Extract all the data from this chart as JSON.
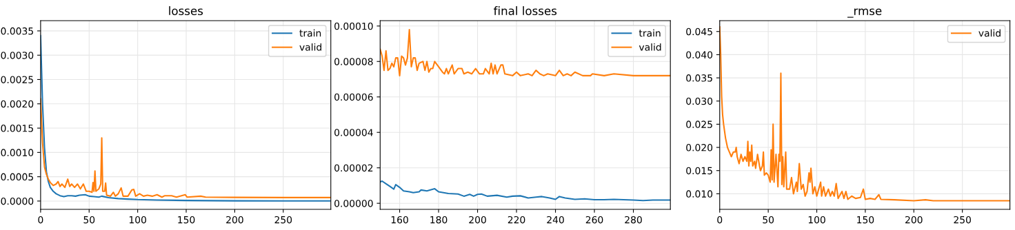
{
  "chart_data": [
    {
      "type": "line",
      "title": "losses",
      "xlim": [
        0,
        299
      ],
      "xticks": [
        0,
        50,
        100,
        150,
        200,
        250
      ],
      "ylim": [
        -0.00017,
        0.00371
      ],
      "yticks": [
        {
          "value": 0,
          "label": "0.0000"
        },
        {
          "value": 0.0005,
          "label": "0.0005"
        },
        {
          "value": 0.001,
          "label": "0.0010"
        },
        {
          "value": 0.0015,
          "label": "0.0015"
        },
        {
          "value": 0.002,
          "label": "0.0020"
        },
        {
          "value": 0.0025,
          "label": "0.0025"
        },
        {
          "value": 0.003,
          "label": "0.0030"
        },
        {
          "value": 0.0035,
          "label": "0.0035"
        }
      ],
      "grid": true,
      "legend": "top right",
      "series": [
        {
          "name": "train",
          "color": "#1f77b4",
          "x": [
            0,
            2,
            4,
            6,
            8,
            10,
            13,
            16,
            20,
            24,
            28,
            32,
            36,
            40,
            46,
            50,
            55,
            60,
            63,
            70,
            80,
            90,
            100,
            120,
            150,
            200,
            250,
            299
          ],
          "values": [
            0.0034,
            0.002,
            0.0011,
            0.0006,
            0.0004,
            0.00028,
            0.0002,
            0.00015,
            0.00011,
            9e-05,
            0.00011,
            0.00011,
            0.0001,
            0.00012,
            0.00013,
            0.0001,
            9e-05,
            8e-05,
            0.0001,
            7e-05,
            5e-05,
            4e-05,
            3e-05,
            2e-05,
            1.2e-05,
            5e-06,
            2e-06,
            1.8e-06
          ]
        },
        {
          "name": "valid",
          "color": "#ff7f0e",
          "x": [
            0,
            2,
            4,
            6,
            8,
            10,
            13,
            16,
            18,
            20,
            22,
            25,
            28,
            30,
            32,
            35,
            38,
            41,
            44,
            47,
            50,
            53,
            54,
            55,
            56,
            57,
            60,
            62,
            63,
            64,
            66,
            67,
            68,
            72,
            75,
            77,
            80,
            83,
            85,
            90,
            94,
            96,
            98,
            102,
            106,
            110,
            115,
            120,
            125,
            128,
            135,
            140,
            149,
            151,
            165,
            170,
            200,
            250,
            299
          ],
          "values": [
            0.0021,
            0.0012,
            0.0007,
            0.00055,
            0.00045,
            0.00038,
            0.00032,
            0.00035,
            0.0004,
            0.0003,
            0.00035,
            0.00028,
            0.00045,
            0.0003,
            0.00035,
            0.00028,
            0.00035,
            0.00025,
            0.00035,
            0.0002,
            0.0002,
            0.00018,
            0.00038,
            0.0002,
            0.00062,
            0.0002,
            0.00025,
            0.00035,
            0.0013,
            0.0002,
            0.0002,
            0.00037,
            0.00012,
            0.0001,
            0.00018,
            0.0001,
            0.00015,
            0.00027,
            0.0001,
            0.0001,
            0.00023,
            0.00024,
            0.0001,
            0.00015,
            0.0001,
            0.00012,
            0.0001,
            0.00013,
            8e-05,
            0.00011,
            0.00011,
            8e-05,
            0.00013,
            8e-05,
            0.0001,
            8e-05,
            7.5e-05,
            7.2e-05,
            7.2e-05
          ]
        }
      ]
    },
    {
      "type": "line",
      "title": "final losses",
      "xlim": [
        150,
        299
      ],
      "xticks": [
        160,
        180,
        200,
        220,
        240,
        260,
        280
      ],
      "ylim": [
        -3.4e-06,
        0.000103
      ],
      "yticks": [
        {
          "value": 0,
          "label": "0.00000"
        },
        {
          "value": 2e-05,
          "label": "0.00002"
        },
        {
          "value": 4e-05,
          "label": "0.00004"
        },
        {
          "value": 6e-05,
          "label": "0.00006"
        },
        {
          "value": 8e-05,
          "label": "0.00008"
        },
        {
          "value": 0.0001,
          "label": "0.00010"
        }
      ],
      "grid": true,
      "legend": "top right",
      "series": [
        {
          "name": "train",
          "color": "#1f77b4",
          "x": [
            150,
            151,
            153,
            155,
            157,
            158,
            160,
            162,
            165,
            167,
            170,
            171,
            174,
            178,
            180,
            185,
            190,
            193,
            196,
            198,
            200,
            202,
            205,
            210,
            215,
            218,
            222,
            226,
            230,
            233,
            237,
            240,
            242,
            245,
            250,
            255,
            260,
            265,
            270,
            280,
            285,
            290,
            299
          ],
          "values": [
            1.2e-05,
            1.25e-05,
            1.1e-05,
            9.5e-06,
            8e-06,
            1.05e-05,
            9e-06,
            7e-06,
            6.5e-06,
            6e-06,
            6.5e-06,
            7.5e-06,
            7e-06,
            8.2e-06,
            6.5e-06,
            5.5e-06,
            5.2e-06,
            4e-06,
            5e-06,
            4e-06,
            5e-06,
            5.2e-06,
            4e-06,
            4.5e-06,
            3.5e-06,
            4e-06,
            4.2e-06,
            3e-06,
            3.5e-06,
            3.8e-06,
            3e-06,
            2.2e-06,
            3.8e-06,
            3e-06,
            2.2e-06,
            2.5e-06,
            2e-06,
            2e-06,
            2.2e-06,
            1.8e-06,
            1.5e-06,
            1.8e-06,
            1.8e-06
          ]
        },
        {
          "name": "valid",
          "color": "#ff7f0e",
          "x": [
            150,
            151,
            152,
            153,
            154,
            155,
            156,
            157,
            158,
            159,
            160,
            161,
            162,
            163,
            164,
            165,
            166,
            167,
            168,
            169,
            170,
            172,
            173,
            174,
            175,
            176,
            177,
            178,
            180,
            182,
            183,
            184,
            185,
            187,
            188,
            190,
            192,
            193,
            195,
            197,
            199,
            201,
            203,
            204,
            206,
            207,
            208,
            209,
            210,
            212,
            213,
            214,
            218,
            220,
            222,
            226,
            228,
            230,
            232,
            234,
            236,
            240,
            242,
            244,
            246,
            248,
            250,
            254,
            258,
            259,
            265,
            270,
            280,
            290,
            299
          ],
          "values": [
            8.7e-05,
            8.3e-05,
            7.5e-05,
            8.6e-05,
            7.5e-05,
            7.6e-05,
            7.9e-05,
            7.7e-05,
            8.2e-05,
            8.2e-05,
            7.2e-05,
            8.3e-05,
            8.2e-05,
            7.8e-05,
            8.2e-05,
            9.8e-05,
            7.7e-05,
            8.2e-05,
            8.2e-05,
            7.5e-05,
            7.9e-05,
            8e-05,
            7.5e-05,
            8e-05,
            7.4e-05,
            7.6e-05,
            7.6e-05,
            8e-05,
            7.7e-05,
            7.4e-05,
            7.3e-05,
            7.6e-05,
            7.3e-05,
            7.8e-05,
            7.3e-05,
            7.6e-05,
            7.6e-05,
            7.3e-05,
            7.4e-05,
            7.3e-05,
            7.6e-05,
            7.3e-05,
            7.3e-05,
            7.6e-05,
            7.3e-05,
            7.9e-05,
            7.3e-05,
            7.8e-05,
            7.3e-05,
            7.8e-05,
            7.8e-05,
            7.3e-05,
            7.2e-05,
            7.4e-05,
            7.2e-05,
            7.3e-05,
            7.2e-05,
            7.5e-05,
            7.3e-05,
            7.2e-05,
            7.3e-05,
            7.2e-05,
            7.5e-05,
            7.2e-05,
            7.3e-05,
            7.2e-05,
            7.4e-05,
            7.2e-05,
            7.2e-05,
            7.3e-05,
            7.2e-05,
            7.3e-05,
            7.2e-05,
            7.2e-05,
            7.2e-05
          ]
        }
      ]
    },
    {
      "type": "line",
      "title": "_rmse",
      "xlim": [
        0,
        299
      ],
      "xticks": [
        0,
        50,
        100,
        150,
        200,
        250
      ],
      "ylim": [
        0.00665,
        0.04733
      ],
      "yticks": [
        {
          "value": 0.01,
          "label": "0.010"
        },
        {
          "value": 0.015,
          "label": "0.015"
        },
        {
          "value": 0.02,
          "label": "0.020"
        },
        {
          "value": 0.025,
          "label": "0.025"
        },
        {
          "value": 0.03,
          "label": "0.030"
        },
        {
          "value": 0.035,
          "label": "0.035"
        },
        {
          "value": 0.04,
          "label": "0.040"
        },
        {
          "value": 0.045,
          "label": "0.045"
        }
      ],
      "grid": true,
      "legend": "top right",
      "series": [
        {
          "name": "valid",
          "color": "#ff7f0e",
          "x": [
            0,
            1,
            2,
            3,
            4,
            6,
            8,
            10,
            12,
            14,
            16,
            17,
            18,
            20,
            22,
            24,
            26,
            28,
            29,
            30,
            31,
            32,
            33,
            34,
            36,
            37,
            39,
            41,
            42,
            44,
            45,
            46,
            48,
            50,
            52,
            53,
            54,
            55,
            56,
            58,
            60,
            61,
            62,
            63,
            64,
            65,
            66,
            68,
            69,
            72,
            74,
            76,
            79,
            80,
            82,
            84,
            86,
            88,
            90,
            92,
            93,
            94,
            96,
            98,
            100,
            102,
            104,
            105,
            107,
            109,
            112,
            114,
            116,
            118,
            120,
            122,
            126,
            128,
            130,
            132,
            136,
            140,
            145,
            148,
            150,
            155,
            160,
            164,
            166,
            180,
            200,
            212,
            220,
            250,
            299
          ],
          "values": [
            0.046,
            0.04,
            0.031,
            0.027,
            0.025,
            0.022,
            0.02,
            0.019,
            0.018,
            0.019,
            0.019,
            0.02,
            0.018,
            0.0165,
            0.0185,
            0.017,
            0.018,
            0.017,
            0.0213,
            0.016,
            0.019,
            0.017,
            0.0205,
            0.016,
            0.017,
            0.0155,
            0.0185,
            0.016,
            0.015,
            0.016,
            0.019,
            0.014,
            0.0145,
            0.014,
            0.0125,
            0.0195,
            0.013,
            0.025,
            0.0125,
            0.0185,
            0.0115,
            0.0185,
            0.017,
            0.036,
            0.012,
            0.018,
            0.0115,
            0.019,
            0.011,
            0.011,
            0.0135,
            0.01,
            0.0125,
            0.0105,
            0.0165,
            0.011,
            0.012,
            0.0095,
            0.0105,
            0.0145,
            0.0125,
            0.0155,
            0.01,
            0.0115,
            0.0095,
            0.011,
            0.0125,
            0.0095,
            0.0115,
            0.0095,
            0.011,
            0.0095,
            0.0105,
            0.0095,
            0.0122,
            0.009,
            0.0105,
            0.009,
            0.0105,
            0.0088,
            0.0095,
            0.009,
            0.0092,
            0.011,
            0.0088,
            0.009,
            0.0088,
            0.0098,
            0.0088,
            0.0087,
            0.0085,
            0.0087,
            0.0085,
            0.0085,
            0.0085
          ]
        }
      ]
    }
  ]
}
